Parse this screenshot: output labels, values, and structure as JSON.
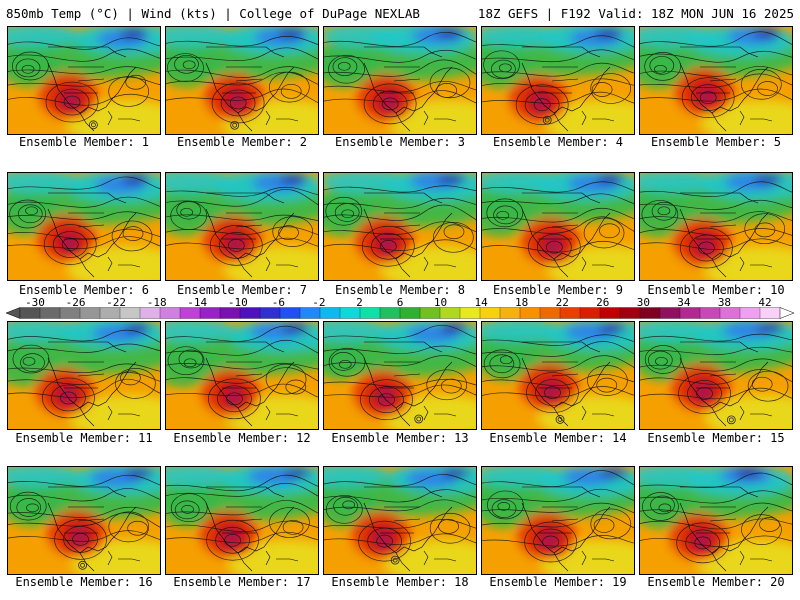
{
  "header": {
    "title_left": "850mb Temp (°C) | Wind (kts) | College of DuPage NEXLAB",
    "title_right": "18Z GEFS | F192 Valid: 18Z MON JUN 16 2025"
  },
  "members": [
    {
      "label": "Ensemble Member: 1"
    },
    {
      "label": "Ensemble Member: 2"
    },
    {
      "label": "Ensemble Member: 3"
    },
    {
      "label": "Ensemble Member: 4"
    },
    {
      "label": "Ensemble Member: 5"
    },
    {
      "label": "Ensemble Member: 6"
    },
    {
      "label": "Ensemble Member: 7"
    },
    {
      "label": "Ensemble Member: 8"
    },
    {
      "label": "Ensemble Member: 9"
    },
    {
      "label": "Ensemble Member: 10"
    },
    {
      "label": "Ensemble Member: 11"
    },
    {
      "label": "Ensemble Member: 12"
    },
    {
      "label": "Ensemble Member: 13"
    },
    {
      "label": "Ensemble Member: 14"
    },
    {
      "label": "Ensemble Member: 15"
    },
    {
      "label": "Ensemble Member: 16"
    },
    {
      "label": "Ensemble Member: 17"
    },
    {
      "label": "Ensemble Member: 18"
    },
    {
      "label": "Ensemble Member: 19"
    },
    {
      "label": "Ensemble Member: 20"
    }
  ],
  "colorbar": {
    "ticks": [
      "-30",
      "-26",
      "-22",
      "-18",
      "-14",
      "-10",
      "-6",
      "-2",
      "2",
      "6",
      "10",
      "14",
      "18",
      "22",
      "26",
      "30",
      "34",
      "38",
      "42"
    ],
    "colors": [
      "#555555",
      "#6a6a6a",
      "#808080",
      "#969696",
      "#adadad",
      "#c6c6c6",
      "#e0b0e8",
      "#d080e0",
      "#c040d8",
      "#9a20c8",
      "#7a10b0",
      "#5010c0",
      "#3030d0",
      "#2050f0",
      "#2088f8",
      "#10b8f0",
      "#10d8d8",
      "#10e0a8",
      "#20c060",
      "#30b030",
      "#70c020",
      "#b0d820",
      "#e8e820",
      "#f8d010",
      "#f8b010",
      "#f89000",
      "#f06800",
      "#e84000",
      "#d82000",
      "#c00000",
      "#a00010",
      "#800020",
      "#901060",
      "#b02890",
      "#c848b8",
      "#e070d8",
      "#f0a0f0",
      "#f8d0f8"
    ]
  },
  "palette": {
    "cold_deep": "#2a1aa0",
    "cold": "#2f7fe8",
    "cool": "#22c6c6",
    "mild": "#38b848",
    "warm": "#e8e020",
    "hot": "#f5a000",
    "very_hot": "#e83a00",
    "extreme": "#c81010",
    "heat_core": "#a01858"
  }
}
